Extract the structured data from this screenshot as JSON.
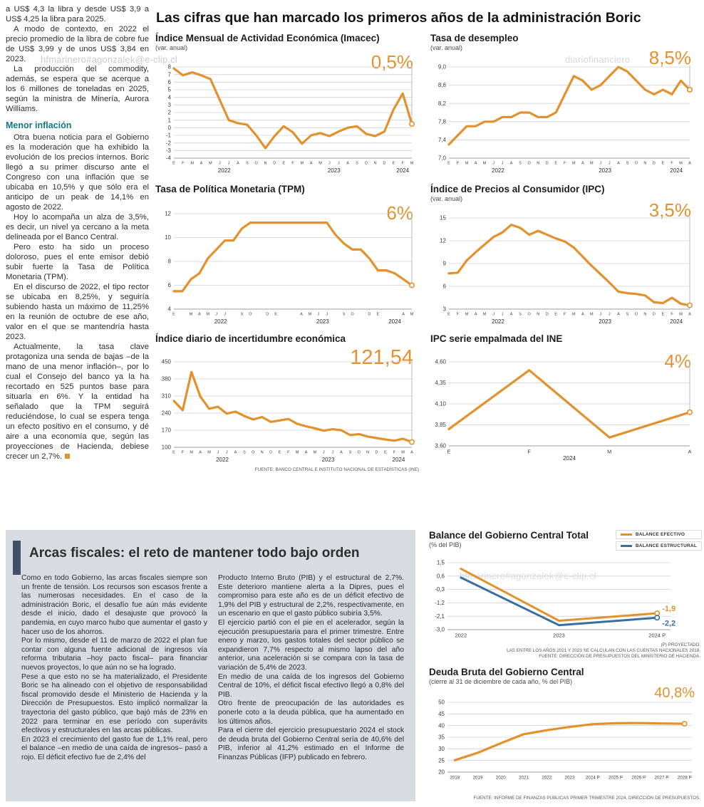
{
  "watermarks": {
    "user": "hfmarinero#agonzalek@e-clip.cl",
    "brand": "diariofinanciero"
  },
  "main_title": "Las cifras que han marcado los primeros años de la administración Boric",
  "left_article": {
    "paragraphs": [
      "a US$ 4,3 la libra y desde US$ 3,9 a US$ 4,25 la libra para 2025.",
      "A modo de contexto, en 2022 el precio promedio de la libra de cobre fue de US$ 3,99 y de unos US$ 3,84 en 2023.",
      "La producción del commodity, además, se espera que se acerque a los 6 millones de toneladas en 2025, según la ministra de Minería, Aurora Williams."
    ],
    "subhead": "Menor inflación",
    "paragraphs2": [
      "Otra buena noticia para el Gobierno es la moderación que ha exhibido la evolución de los precios internos. Boric llegó a su primer discurso ante el Congreso con una inflación que se ubicaba en 10,5% y que sólo era el anticipo de un peak de 14,1% en agosto de 2022.",
      "Hoy lo acompaña un alza de 3,5%, es decir, un nivel ya cercano a la meta delineada por el Banco Central.",
      "Pero esto ha sido un proceso doloroso, pues el ente emisor debió subir fuerte la Tasa de Política Monetaria (TPM).",
      "En el discurso de 2022, el tipo rector se ubicaba en 8,25%, y seguiría subiendo hasta un máximo de 11,25% en la reunión de octubre de ese año, valor en el que se mantendría hasta 2023."
    ],
    "last_paragraph": "Actualmente, la tasa clave protagoniza una senda de bajas –de la mano de una menor inflación–, por lo cual el Consejo del banco ya la ha recortado en 525 puntos base para situarla en 6%. Y la entidad ha señalado que la TPM seguirá reduciéndose, lo cual se espera tenga un efecto positivo en el consumo, y dé aire a una economía que, según las proyecciones de Hacienda, debiese crecer un 2,7%."
  },
  "fiscal_panel": {
    "headline": "Arcas fiscales: el reto de mantener todo bajo orden",
    "col1": [
      "Como en todo Gobierno, las arcas fiscales siempre son un frente de tensión. Los recursos son escasos frente a las numerosas necesidades. En el caso de la administración Boric, el desafío fue aún más evidente desde el inicio, dado el desajuste que provocó la pandemia, en cuyo marco hubo que aumentar el gasto y hacer uso de los ahorros.",
      "Por lo mismo, desde el 11 de marzo de 2022 el plan fue contar con alguna fuente adicional de ingresos vía reforma tributaria –hoy pacto fiscal– para financiar nuevos proyectos, lo que aún no se ha logrado.",
      "Pese a que esto no se ha materializado, el Presidente Boric se ha alineado con el objetivo de responsabilidad fiscal promovido desde el Ministerio de Hacienda y la Dirección de Presupuestos. Esto implicó normalizar la trayectoria del gasto público, que bajó más de 23% en 2022 para terminar en ese período con superávits efectivos y estructurales en las arcas públicas.",
      "En 2023 el crecimiento del gasto fue de 1,1% real, pero el balance –en medio de una caída de ingresos– pasó a rojo. El déficit efectivo fue de 2,4% del"
    ],
    "col2": [
      "Producto Interno Bruto (PIB) y el estructural de 2,7%. Este deterioro mantiene alerta a la Dipres, pues el compromiso para este año es de un déficit efectivo de 1,9% del PIB y estructural de 2,2%, respectivamente, en un escenario en que el gasto público subiría 3,5%.",
      "El ejercicio partió con el pie en el acelerador, según la ejecución presupuestaria para el primer trimestre. Entre enero y marzo, los gastos totales del sector público se expandieron 7,7% respecto al mismo lapso del año anterior, una aceleración si se compara con la tasa de variación de 5,4% de 2023.",
      "En medio de una caída de los ingresos del Gobierno Central de 10%, el déficit fiscal efectivo llegó a 0,8% del PIB.",
      "Otro frente de preocupación de las autoridades es ponerle coto a la deuda pública, que ha aumentado en los últimos años.",
      "Para el cierre del ejercicio presupuestario 2024 el stock de deuda bruta del Gobierno Central sería de 40,6% del PIB, inferior al 41,2% estimado en el Informe de Finanzas Públicas (IFP) publicado en febrero."
    ]
  },
  "colors": {
    "accent_orange": "#E2912C",
    "accent_blue": "#3A6E9F",
    "teal": "#117784"
  },
  "chart_data": [
    {
      "id": "imacec",
      "type": "line",
      "title": "Índice Mensual de Actividad Económica (Imacec)",
      "subtitle": "(var. anual)",
      "big_value": "0,5%",
      "x_labels": [
        "E",
        "F",
        "M",
        "A",
        "M",
        "J",
        "J",
        "A",
        "S",
        "O",
        "N",
        "D",
        "E",
        "F",
        "M",
        "A",
        "M",
        "J",
        "J",
        "A",
        "S",
        "O",
        "N",
        "D",
        "E",
        "F",
        "M"
      ],
      "year_groups": [
        {
          "label": "2022",
          "from": 0,
          "to": 11
        },
        {
          "label": "2023",
          "from": 12,
          "to": 23
        },
        {
          "label": "2024",
          "from": 24,
          "to": 26
        }
      ],
      "series": [
        {
          "name": "Imacec",
          "color": "#E2912C",
          "values": [
            7.8,
            6.9,
            7.3,
            6.9,
            6.4,
            3.7,
            1.0,
            0.6,
            0.4,
            -1.0,
            -2.7,
            -1.1,
            0.2,
            -0.6,
            -2.1,
            -1.0,
            -0.7,
            -1.1,
            -0.5,
            0.0,
            0.2,
            -0.8,
            -1.1,
            -0.5,
            2.4,
            4.5,
            0.5
          ]
        }
      ],
      "ylim": [
        -4,
        8
      ],
      "ytick_values": [
        8,
        7,
        6,
        5,
        4,
        3,
        2,
        1,
        0,
        -1,
        -2,
        -3,
        -4
      ],
      "ytick_labels": [
        "8",
        "7",
        "6",
        "5",
        "4",
        "3",
        "2",
        "1",
        "0",
        "-1",
        "-2",
        "-3",
        "-4"
      ],
      "ref_line": true
    },
    {
      "id": "desempleo",
      "type": "line",
      "title": "Tasa de desempleo",
      "subtitle": "(var. anual)",
      "big_value": "8,5%",
      "x_labels": [
        "E",
        "F",
        "M",
        "A",
        "M",
        "J",
        "J",
        "A",
        "S",
        "O",
        "N",
        "D",
        "E",
        "F",
        "M",
        "A",
        "M",
        "J",
        "J",
        "A",
        "S",
        "O",
        "N",
        "D",
        "E",
        "F",
        "M",
        "A"
      ],
      "year_groups": [
        {
          "label": "2022",
          "from": 0,
          "to": 11
        },
        {
          "label": "2023",
          "from": 12,
          "to": 23
        },
        {
          "label": "2024",
          "from": 24,
          "to": 27
        }
      ],
      "series": [
        {
          "name": "Tasa de desempleo",
          "color": "#E2912C",
          "values": [
            7.3,
            7.5,
            7.7,
            7.7,
            7.8,
            7.8,
            7.9,
            7.9,
            8.0,
            8.0,
            7.9,
            7.9,
            8.0,
            8.4,
            8.8,
            8.7,
            8.5,
            8.6,
            8.8,
            9.0,
            8.9,
            8.7,
            8.5,
            8.4,
            8.5,
            8.4,
            8.7,
            8.5
          ]
        }
      ],
      "ylim": [
        7.0,
        9.0
      ],
      "ytick_values": [
        9.0,
        8.6,
        8.2,
        7.8,
        7.4,
        7.0
      ],
      "ytick_labels": [
        "9,0",
        "8,6",
        "8,2",
        "7,8",
        "7,4",
        "7,0"
      ],
      "ref_line": true
    },
    {
      "id": "tpm",
      "type": "line",
      "title": "Tasa de Política Monetaria (TPM)",
      "big_value": "6%",
      "x_labels": [
        "E",
        "",
        "M",
        "A",
        "M",
        "J",
        "J",
        "",
        "S",
        "O",
        "",
        "D",
        "E",
        "",
        "",
        "A",
        "M",
        "J",
        "J",
        "",
        "S",
        "O",
        "",
        "D",
        "E",
        "",
        "",
        "A",
        "M"
      ],
      "year_groups": [
        {
          "label": "2022",
          "from": 0,
          "to": 11
        },
        {
          "label": "2023",
          "from": 12,
          "to": 23
        },
        {
          "label": "2024",
          "from": 24,
          "to": 28
        }
      ],
      "series": [
        {
          "name": "TPM",
          "color": "#E2912C",
          "values": [
            5.5,
            5.5,
            6.5,
            7.0,
            8.25,
            9.0,
            9.75,
            9.75,
            10.75,
            11.25,
            11.25,
            11.25,
            11.25,
            11.25,
            11.25,
            11.25,
            11.25,
            11.25,
            11.25,
            10.25,
            9.5,
            9.0,
            9.0,
            8.25,
            7.25,
            7.25,
            7.0,
            6.5,
            6.0
          ]
        }
      ],
      "ylim": [
        4,
        12
      ],
      "ytick_values": [
        12,
        10,
        8,
        6,
        4
      ],
      "ytick_labels": [
        "12",
        "10",
        "8",
        "6",
        "4"
      ],
      "ref_line": true
    },
    {
      "id": "ipc",
      "type": "line",
      "title": "Índice de Precios al Consumidor (IPC)",
      "subtitle": "(var. anual)",
      "big_value": "3,5%",
      "x_labels": [
        "E",
        "F",
        "M",
        "A",
        "M",
        "J",
        "J",
        "A",
        "S",
        "O",
        "N",
        "D",
        "E",
        "F",
        "M",
        "A",
        "M",
        "J",
        "J",
        "A",
        "S",
        "O",
        "N",
        "D",
        "E",
        "F",
        "M",
        "A"
      ],
      "year_groups": [
        {
          "label": "2022",
          "from": 0,
          "to": 11
        },
        {
          "label": "2023",
          "from": 12,
          "to": 23
        },
        {
          "label": "2024",
          "from": 24,
          "to": 27
        }
      ],
      "series": [
        {
          "name": "IPC",
          "color": "#E2912C",
          "values": [
            7.7,
            7.8,
            9.4,
            10.5,
            11.5,
            12.5,
            13.1,
            14.1,
            13.7,
            12.8,
            13.3,
            12.8,
            12.3,
            11.9,
            11.1,
            9.9,
            8.7,
            7.6,
            6.5,
            5.3,
            5.1,
            5.0,
            4.8,
            3.9,
            3.8,
            4.5,
            3.7,
            3.5
          ]
        }
      ],
      "ylim": [
        3,
        15
      ],
      "ytick_values": [
        15,
        12,
        9,
        6,
        3
      ],
      "ytick_labels": [
        "15",
        "12",
        "9",
        "6",
        "3"
      ],
      "ref_line": true
    },
    {
      "id": "incertidumbre",
      "type": "line",
      "title": "Índice diario de incertidumbre económica",
      "big_value": "121,54",
      "x_labels": [
        "E",
        "F",
        "M",
        "A",
        "M",
        "J",
        "J",
        "A",
        "S",
        "O",
        "N",
        "D",
        "E",
        "F",
        "M",
        "A",
        "M",
        "J",
        "J",
        "A",
        "S",
        "O",
        "N",
        "D",
        "E",
        "F",
        "M",
        "A"
      ],
      "year_groups": [
        {
          "label": "2022",
          "from": 0,
          "to": 11
        },
        {
          "label": "2023",
          "from": 12,
          "to": 23
        },
        {
          "label": "2024",
          "from": 24,
          "to": 27
        }
      ],
      "series": [
        {
          "name": "Incertidumbre económica",
          "color": "#E2912C",
          "values": [
            290,
            252,
            408,
            308,
            258,
            266,
            238,
            246,
            228,
            214,
            224,
            204,
            210,
            216,
            196,
            186,
            178,
            168,
            174,
            170,
            150,
            154,
            144,
            138,
            132,
            127,
            135,
            121.54
          ]
        }
      ],
      "ylim": [
        100,
        450
      ],
      "ytick_values": [
        450,
        380,
        310,
        240,
        170,
        100
      ],
      "ytick_labels": [
        "450",
        "380",
        "310",
        "240",
        "170",
        "100"
      ],
      "ref_line": true,
      "source": "FUENTE: BANCO CENTRAL E INSTITUTO NACIONAL DE ESTADÍSTICAS (INE)"
    },
    {
      "id": "ipc_ine",
      "type": "line",
      "title": "IPC serie empalmada del INE",
      "big_value": "4%",
      "x_labels": [
        "E",
        "F",
        "M",
        "A"
      ],
      "year_groups": [
        {
          "label": "2024",
          "from": 0,
          "to": 3
        }
      ],
      "series": [
        {
          "name": "IPC serie empalmada",
          "color": "#E2912C",
          "values": [
            3.8,
            4.5,
            3.7,
            4.0
          ]
        }
      ],
      "ylim": [
        3.6,
        4.6
      ],
      "ytick_values": [
        4.6,
        4.35,
        4.1,
        3.85,
        3.6
      ],
      "ytick_labels": [
        "4,60",
        "4,35",
        "4,10",
        "3,85",
        "3,60"
      ],
      "ref_line": true
    },
    {
      "id": "balance",
      "type": "line",
      "title": "Balance del Gobierno Central Total",
      "subtitle": "(% del PIB)",
      "legend": [
        {
          "label": "BALANCE EFECTIVO",
          "color": "#E2912C"
        },
        {
          "label": "BALANCE ESTRUCTURAL",
          "color": "#3A6E9F"
        }
      ],
      "x_labels": [
        "2022",
        "2023",
        "2024 P"
      ],
      "series": [
        {
          "name": "BALANCE EFECTIVO",
          "color": "#E2912C",
          "values": [
            1.1,
            -2.4,
            -1.9
          ],
          "end_label": "-1,9"
        },
        {
          "name": "BALANCE ESTRUCTURAL",
          "color": "#3A6E9F",
          "values": [
            0.5,
            -2.7,
            -2.2
          ],
          "end_label": "-2,2"
        }
      ],
      "ylim": [
        -3.0,
        1.5
      ],
      "ytick_values": [
        1.5,
        0.6,
        -0.3,
        -1.2,
        -2.1,
        -3.0
      ],
      "ytick_labels": [
        "1,5",
        "0,6",
        "-0,3",
        "-1,2",
        "-2,1",
        "-3,0"
      ],
      "ref_line": false,
      "notes": [
        "(P) PROYECTADO.",
        "LAS ENTRE LOS AÑOS 2021 Y 2023 SE CALCULAN CON LAS CUENTAS NACIONALES 2018.",
        "FUENTE: DIRECCIÓN DE PRESUPUESTOS DEL MINISTERIO DE HACIENDA."
      ]
    },
    {
      "id": "deuda",
      "type": "line",
      "title": "Deuda Bruta del Gobierno Central",
      "subtitle": "(cierre al 31 de diciembre de cada año, % del PIB)",
      "big_value": "40,8%",
      "x_labels": [
        "2018",
        "2019",
        "2020",
        "2021",
        "2022",
        "2023",
        "2024 P",
        "2025 P",
        "2026 P",
        "2027 P",
        "2028 P"
      ],
      "series": [
        {
          "name": "Deuda bruta",
          "color": "#E2912C",
          "values": [
            25.1,
            28.3,
            32.4,
            36.3,
            38.0,
            39.4,
            40.6,
            41.0,
            41.1,
            40.9,
            40.8
          ]
        }
      ],
      "ylim": [
        20,
        50
      ],
      "ytick_values": [
        50,
        45,
        40,
        35,
        30,
        25,
        20
      ],
      "ytick_labels": [
        "50",
        "45",
        "40",
        "35",
        "30",
        "25",
        "20"
      ],
      "ref_line": false,
      "source": "FUENTE: INFORME DE FINANZAS PÚBLICAS PRIMER TRIMESTRE 2024, DIRECCIÓN DE PRESUPUESTOS."
    }
  ]
}
